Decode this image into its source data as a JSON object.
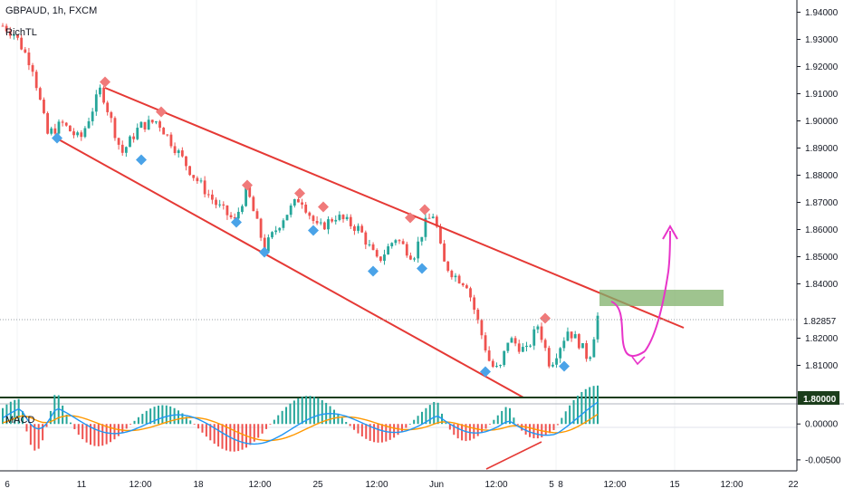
{
  "header": {
    "title": "GBPAUD, 1h, FXCM",
    "indicator": "RichTL",
    "macd_label": "MACD"
  },
  "colors": {
    "bull": "#26a69a",
    "bear": "#ef5350",
    "trendline": "#e53935",
    "peak_marker": "#f07a7a",
    "trough_marker": "#4aa3e8",
    "zone": "#7fb069",
    "arrow": "#e834c9",
    "macd_line": "#2196f3",
    "signal_line": "#ff9800",
    "support_line": "#1b3d1b"
  },
  "chart_data": [
    {
      "type": "candlestick",
      "title": "GBPAUD, 1h, FXCM",
      "x_ticks": [
        "6",
        "11",
        "12:00",
        "18",
        "12:00",
        "25",
        "12:00",
        "Jun",
        "12:00",
        "5",
        "8",
        "12:00",
        "15",
        "12:00",
        "22"
      ],
      "y_ticks": [
        "1.94000",
        "1.93000",
        "1.92000",
        "1.91000",
        "1.90000",
        "1.89000",
        "1.88000",
        "1.87000",
        "1.86000",
        "1.85000",
        "1.84000",
        "1.82000",
        "1.81000"
      ],
      "ylim": [
        1.7965,
        1.9445
      ],
      "current_price": "1.82857",
      "support_level": "1.80000",
      "path": [
        [
          0,
          1.935
        ],
        [
          0.02,
          1.932
        ],
        [
          0.05,
          1.92
        ],
        [
          0.075,
          1.895
        ],
        [
          0.1,
          1.899
        ],
        [
          0.13,
          1.893
        ],
        [
          0.165,
          1.912
        ],
        [
          0.2,
          1.888
        ],
        [
          0.23,
          1.898
        ],
        [
          0.26,
          1.9
        ],
        [
          0.29,
          1.89
        ],
        [
          0.32,
          1.88
        ],
        [
          0.36,
          1.869
        ],
        [
          0.39,
          1.863
        ],
        [
          0.41,
          1.875
        ],
        [
          0.44,
          1.853
        ],
        [
          0.47,
          1.864
        ],
        [
          0.5,
          1.872
        ],
        [
          0.53,
          1.86
        ],
        [
          0.56,
          1.865
        ],
        [
          0.6,
          1.86
        ],
        [
          0.63,
          1.848
        ],
        [
          0.66,
          1.857
        ],
        [
          0.69,
          1.85
        ],
        [
          0.71,
          1.862
        ],
        [
          0.725,
          1.866
        ],
        [
          0.74,
          1.848
        ],
        [
          0.76,
          1.843
        ],
        [
          0.78,
          1.84
        ],
        [
          0.8,
          1.825
        ],
        [
          0.82,
          1.81
        ],
        [
          0.835,
          1.808
        ],
        [
          0.85,
          1.82
        ],
        [
          0.88,
          1.815
        ],
        [
          0.9,
          1.825
        ],
        [
          0.92,
          1.81
        ],
        [
          0.95,
          1.823
        ],
        [
          0.97,
          1.818
        ],
        [
          0.985,
          1.812
        ],
        [
          1.0,
          1.828
        ]
      ],
      "peaks": [
        1.913,
        1.902,
        1.875,
        1.872,
        1.867,
        1.863,
        1.866,
        1.826
      ],
      "troughs": [
        1.895,
        1.887,
        1.864,
        1.853,
        1.861,
        1.846,
        1.847,
        1.809,
        1.811
      ],
      "channel": {
        "upper": {
          "from": 1.913,
          "to": 1.827
        },
        "lower": {
          "from": 1.895,
          "to": 1.8
        }
      },
      "resistance_zone": [
        1.8336,
        1.8395
      ]
    },
    {
      "type": "macd",
      "title": "MACD",
      "y_ticks": [
        "0.00000",
        "-0.00500"
      ],
      "ylim": [
        -0.0064,
        0.0023
      ]
    }
  ]
}
